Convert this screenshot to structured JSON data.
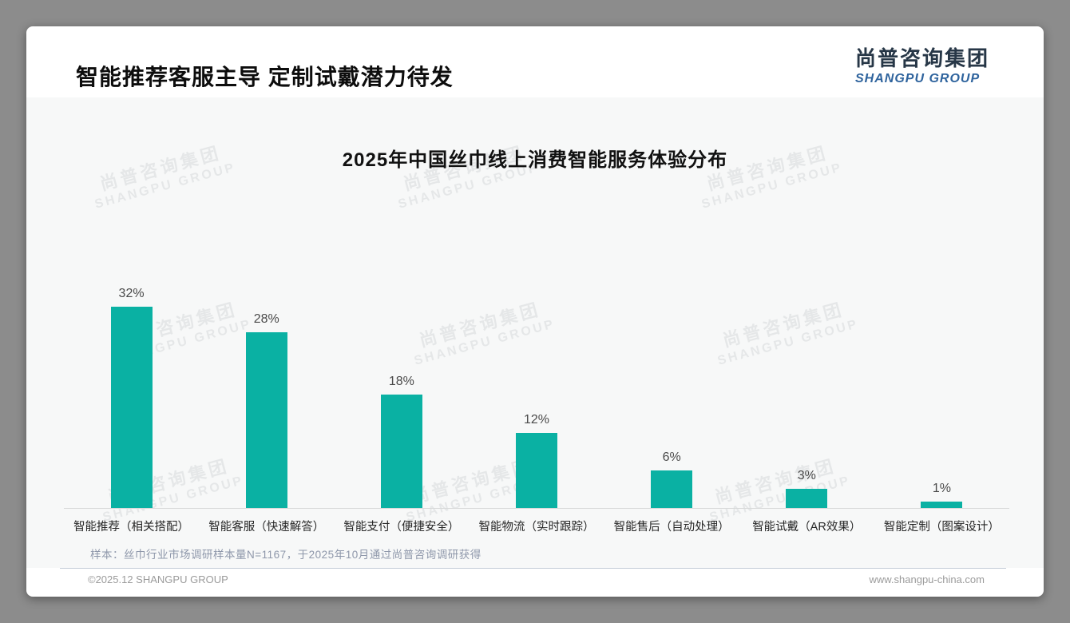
{
  "page": {
    "title": "智能推荐客服主导 定制试戴潜力待发",
    "logo": {
      "cn": "尚普咨询集团",
      "en": "SHANGPU GROUP"
    },
    "watermark": {
      "cn": "尚普咨询集团",
      "en": "SHANGPU GROUP"
    },
    "footnote": "样本：丝巾行业市场调研样本量N=1167，于2025年10月通过尚普咨询调研获得",
    "footer": {
      "left": "©2025.12 SHANGPU GROUP",
      "right": "www.shangpu-china.com"
    }
  },
  "chart_data": {
    "type": "bar",
    "title": "2025年中国丝巾线上消费智能服务体验分布",
    "categories": [
      "智能推荐（相关搭配）",
      "智能客服（快速解答）",
      "智能支付（便捷安全）",
      "智能物流（实时跟踪）",
      "智能售后（自动处理）",
      "智能试戴（AR效果）",
      "智能定制（图案设计）"
    ],
    "values": [
      32,
      28,
      18,
      12,
      6,
      3,
      1
    ],
    "unit": "%",
    "value_labels": "above bars",
    "bar_color": "#0ab1a3",
    "xlabel": "",
    "ylabel": "",
    "ylim": [
      0,
      35
    ],
    "grid": false,
    "legend": false,
    "y_axis_labels_visible": false
  },
  "colors": {
    "bar": "#0ab1a3",
    "logo_cn": "#273747",
    "logo_en": "#2e639d",
    "footnote": "#8e97aa",
    "footer_text": "#9b9b9b",
    "card_bg": "#ffffff",
    "outer_bg": "#8c8c8c"
  }
}
